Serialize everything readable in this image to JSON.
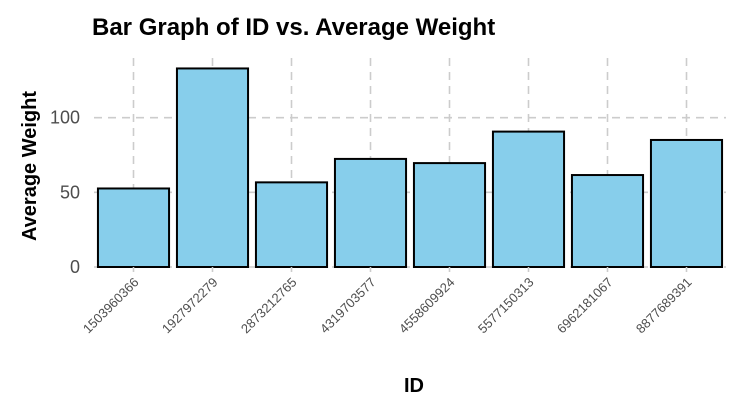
{
  "chart_data": {
    "type": "bar",
    "title": "Bar Graph of ID vs. Average Weight",
    "xlabel": "ID",
    "ylabel": "Average Weight",
    "categories": [
      "1503960366",
      "1927972279",
      "2873212765",
      "4319703577",
      "4558609924",
      "5577150313",
      "6962181067",
      "8877689391"
    ],
    "values": [
      52.6,
      133.0,
      56.7,
      72.4,
      69.6,
      90.7,
      61.6,
      85.1
    ],
    "yticks": [
      0,
      50,
      100
    ],
    "ylim": [
      0,
      140
    ],
    "grid": true,
    "bar_color": "#87ceeb",
    "bar_edge_color": "#000000"
  }
}
